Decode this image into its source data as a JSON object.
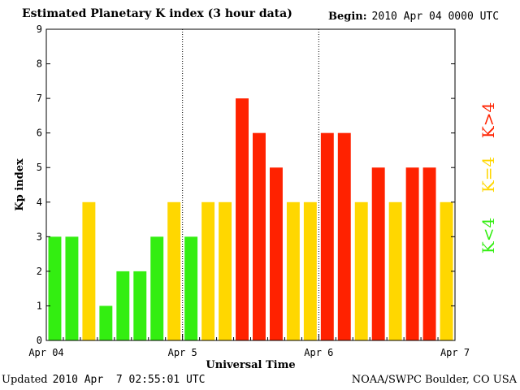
{
  "header": {
    "title": "Estimated Planetary K index (3 hour data)",
    "begin_label": "Begin:",
    "begin_value": "2010 Apr 04 0000 UTC"
  },
  "footer": {
    "updated_label": "Updated",
    "updated_value": "2010 Apr  7 02:55:01 UTC",
    "credit": "NOAA/SWPC Boulder, CO USA"
  },
  "legend": {
    "low": "K<4",
    "mid": "K=4",
    "high": "K>4"
  },
  "colors": {
    "low": "#33ee11",
    "mid": "#ffd700",
    "high": "#ff2200",
    "frame": "#000000",
    "gridline": "#000000"
  },
  "chart_data": {
    "type": "bar",
    "title": "Estimated Planetary K index (3 hour data)",
    "xlabel": "Universal Time",
    "ylabel": "Kp index",
    "ylim": [
      0,
      9
    ],
    "yticks": [
      "0",
      "1",
      "2",
      "3",
      "4",
      "5",
      "6",
      "7",
      "8",
      "9"
    ],
    "xticks": [
      "Apr 04",
      "Apr 5",
      "Apr 6",
      "Apr 7"
    ],
    "day_separators": [
      "Apr 5",
      "Apr 6"
    ],
    "interval_hours": 3,
    "values": [
      3,
      3,
      4,
      1,
      2,
      2,
      3,
      4,
      3,
      4,
      4,
      7,
      6,
      5,
      4,
      4,
      6,
      6,
      4,
      5,
      4,
      5,
      5,
      4
    ],
    "color_rule": "green below 4, yellow equal to 4, red above 4",
    "grid": false
  }
}
